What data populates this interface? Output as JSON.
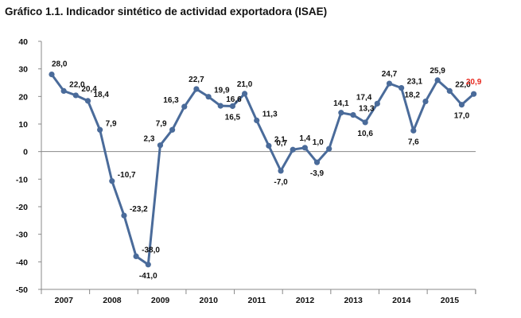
{
  "page_title": "Gráfico 1.1. Indicador sintético de actividad exportadora (ISAE)",
  "colors": {
    "line": "#4a6b9a",
    "label": "#111111",
    "highlight_label": "#e8281e",
    "axis": "#888888"
  },
  "chart_data": {
    "type": "line",
    "title": "Gráfico 1.1. Indicador sintético de actividad exportadora (ISAE)",
    "xlabel": "",
    "ylabel": "",
    "ylim": [
      -50,
      40
    ],
    "yticks": [
      "40",
      "30",
      "20",
      "10",
      "0",
      "-10",
      "-20",
      "-30",
      "-40",
      "-50"
    ],
    "x_axis_years": [
      "2007",
      "2008",
      "2009",
      "2010",
      "2011",
      "2012",
      "2013",
      "2014",
      "2015"
    ],
    "grid": false,
    "legend": "none",
    "series": [
      {
        "values": [
          28.0,
          22.0,
          20.4,
          18.4,
          7.9,
          -10.7,
          -23.2,
          -38.0,
          -41.0,
          2.3,
          7.9,
          16.3,
          22.7,
          19.9,
          16.6,
          16.5,
          21.0,
          11.3,
          2.1,
          -7.0,
          0.7,
          1.4,
          -3.9,
          1.0,
          14.1,
          13.3,
          10.6,
          17.4,
          24.7,
          23.1,
          7.6,
          18.2,
          25.9,
          22.0,
          17.0,
          20.9
        ],
        "data_labels": [
          "28,0",
          "22,0",
          "20,4",
          "18,4",
          "7,9",
          "-10,7",
          "-23,2",
          "-38,0",
          "-41,0",
          "2,3",
          "7,9",
          "16,3",
          "22,7",
          "19,9",
          "16,6",
          "16,5",
          "21,0",
          "11,3",
          "2,1",
          "-7,0",
          "0,7",
          "1,4",
          "-3,9",
          "1,0",
          "14,1",
          "13,3",
          "10,6",
          "17,4",
          "24,7",
          "23,1",
          "7,6",
          "18,2",
          "25,9",
          "22,0",
          "17,0",
          "20,9"
        ],
        "highlight_last": true
      }
    ]
  }
}
